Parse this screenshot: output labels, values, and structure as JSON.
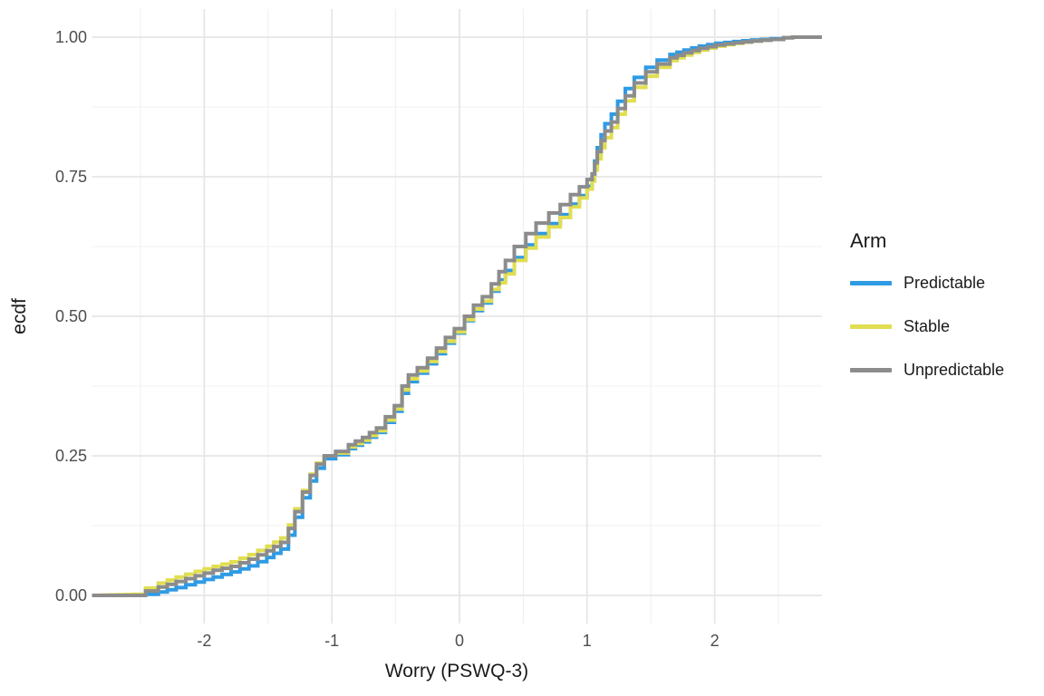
{
  "chart_data": {
    "type": "line",
    "subtype": "ecdf-step",
    "title": "",
    "xlabel": "Worry (PSWQ-3)",
    "ylabel": "ecdf",
    "legend_title": "Arm",
    "legend_position": "right",
    "grid": true,
    "background": "#ffffff",
    "grid_major_color": "#e6e6e6",
    "grid_minor_color": "#f0f0f0",
    "tick_label_color": "#4d4d4d",
    "axis_title_color": "#1a1a1a",
    "xlim": [
      -2.88,
      2.84
    ],
    "ylim": [
      0.0,
      1.0
    ],
    "x_ticks": [
      -2,
      -1,
      0,
      1,
      2
    ],
    "x_tick_labels": [
      "-2",
      "-1",
      "0",
      "1",
      "2"
    ],
    "x_minor_ticks": [
      -2.5,
      -1.5,
      -0.5,
      0.5,
      1.5,
      2.5
    ],
    "y_ticks": [
      0.0,
      0.25,
      0.5,
      0.75,
      1.0
    ],
    "y_tick_labels": [
      "0.00",
      "0.25",
      "0.50",
      "0.75",
      "1.00"
    ],
    "y_minor_ticks": [
      0.125,
      0.375,
      0.625,
      0.875
    ],
    "x": [
      -2.88,
      -2.55,
      -2.46,
      -2.36,
      -2.22,
      -2.07,
      -1.93,
      -1.79,
      -1.65,
      -1.51,
      -1.4,
      -1.34,
      -1.29,
      -1.23,
      -1.17,
      -1.12,
      -1.06,
      -0.97,
      -0.87,
      -0.76,
      -0.65,
      -0.58,
      -0.51,
      -0.45,
      -0.4,
      -0.33,
      -0.25,
      -0.18,
      -0.11,
      -0.04,
      0.04,
      0.11,
      0.18,
      0.25,
      0.31,
      0.36,
      0.43,
      0.52,
      0.6,
      0.7,
      0.79,
      0.87,
      0.94,
      1.0,
      1.04,
      1.06,
      1.08,
      1.11,
      1.14,
      1.19,
      1.24,
      1.3,
      1.37,
      1.46,
      1.55,
      1.65,
      1.76,
      1.88,
      2.01,
      2.15,
      2.29,
      2.44,
      2.54,
      2.61,
      2.84
    ],
    "series": [
      {
        "name": "Predictable",
        "color": "#2e9be4",
        "values": [
          0,
          0,
          0.002,
          0.006,
          0.014,
          0.024,
          0.033,
          0.042,
          0.053,
          0.068,
          0.083,
          0.108,
          0.14,
          0.175,
          0.205,
          0.228,
          0.245,
          0.252,
          0.263,
          0.275,
          0.292,
          0.31,
          0.33,
          0.362,
          0.383,
          0.398,
          0.415,
          0.433,
          0.452,
          0.47,
          0.492,
          0.51,
          0.524,
          0.545,
          0.565,
          0.582,
          0.605,
          0.628,
          0.648,
          0.666,
          0.682,
          0.701,
          0.716,
          0.733,
          0.752,
          0.778,
          0.802,
          0.825,
          0.845,
          0.862,
          0.885,
          0.908,
          0.928,
          0.946,
          0.959,
          0.969,
          0.977,
          0.984,
          0.989,
          0.992,
          0.995,
          0.997,
          0.999,
          1.0,
          1.0
        ]
      },
      {
        "name": "Stable",
        "color": "#e1de52",
        "values": [
          0,
          0.002,
          0.013,
          0.022,
          0.033,
          0.043,
          0.052,
          0.06,
          0.073,
          0.088,
          0.103,
          0.126,
          0.155,
          0.188,
          0.217,
          0.237,
          0.25,
          0.255,
          0.266,
          0.278,
          0.295,
          0.314,
          0.334,
          0.368,
          0.388,
          0.402,
          0.419,
          0.437,
          0.455,
          0.472,
          0.494,
          0.513,
          0.527,
          0.548,
          0.56,
          0.576,
          0.6,
          0.622,
          0.642,
          0.66,
          0.677,
          0.696,
          0.712,
          0.728,
          0.742,
          0.762,
          0.782,
          0.802,
          0.82,
          0.838,
          0.862,
          0.886,
          0.91,
          0.93,
          0.946,
          0.958,
          0.968,
          0.977,
          0.984,
          0.989,
          0.993,
          0.996,
          0.999,
          1.0,
          1.0
        ]
      },
      {
        "name": "Unpredictable",
        "color": "#8c8c8c",
        "values": [
          0,
          0,
          0.008,
          0.015,
          0.025,
          0.035,
          0.045,
          0.052,
          0.065,
          0.08,
          0.095,
          0.12,
          0.15,
          0.185,
          0.215,
          0.235,
          0.25,
          0.258,
          0.27,
          0.283,
          0.3,
          0.32,
          0.34,
          0.375,
          0.395,
          0.408,
          0.425,
          0.443,
          0.462,
          0.478,
          0.5,
          0.52,
          0.535,
          0.558,
          0.58,
          0.6,
          0.625,
          0.648,
          0.667,
          0.685,
          0.7,
          0.718,
          0.732,
          0.745,
          0.755,
          0.775,
          0.795,
          0.815,
          0.832,
          0.848,
          0.872,
          0.895,
          0.918,
          0.938,
          0.952,
          0.963,
          0.972,
          0.98,
          0.986,
          0.99,
          0.993,
          0.996,
          0.999,
          1.0,
          1.0
        ]
      }
    ]
  }
}
